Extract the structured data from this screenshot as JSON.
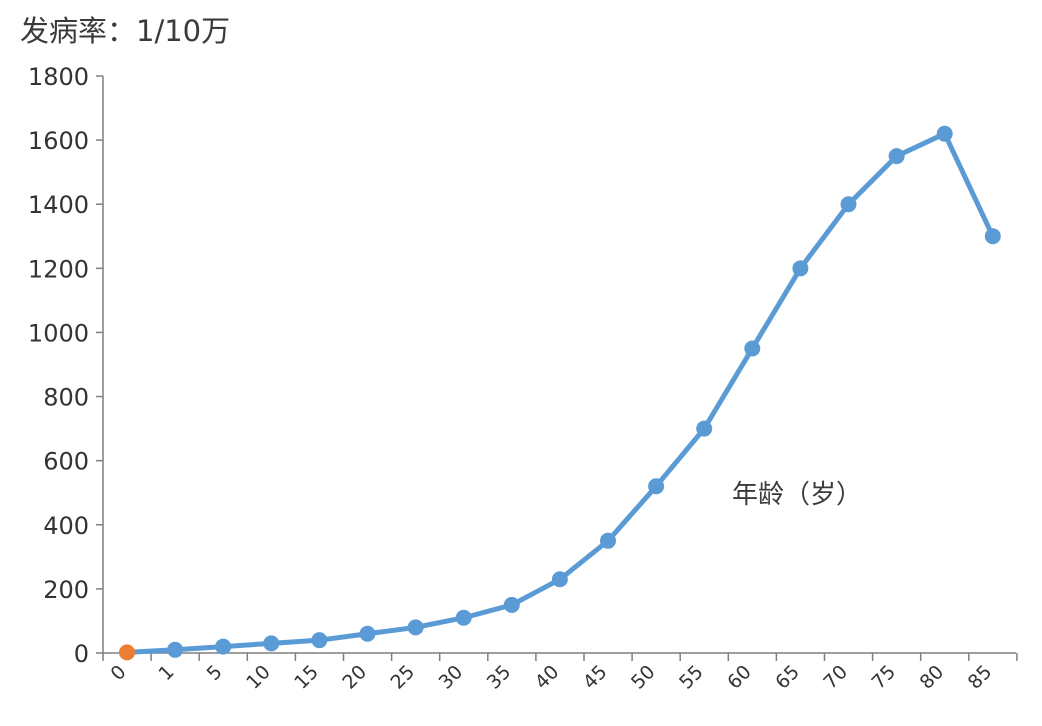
{
  "chart_data": {
    "type": "line",
    "title": "发病率：1/10万",
    "xlabel": "年龄（岁）",
    "ylabel": "",
    "categories": [
      "0",
      "1",
      "5",
      "10",
      "15",
      "20",
      "25",
      "30",
      "35",
      "40",
      "45",
      "50",
      "55",
      "60",
      "65",
      "70",
      "75",
      "80",
      "85"
    ],
    "series": [
      {
        "values": [
          2,
          10,
          20,
          30,
          40,
          60,
          80,
          110,
          150,
          230,
          350,
          520,
          700,
          950,
          1200,
          1400,
          1550,
          1620,
          1300
        ]
      }
    ],
    "highlight": {
      "index": 0,
      "color": "#ed7d31"
    },
    "ylim": [
      0,
      1800
    ],
    "yticks": [
      0,
      200,
      400,
      600,
      800,
      1000,
      1200,
      1400,
      1600,
      1800
    ],
    "grid": false,
    "legend": "none",
    "colors": {
      "line": "#5b9bd5",
      "axis": "#7f7f7f",
      "text": "#333333"
    }
  }
}
